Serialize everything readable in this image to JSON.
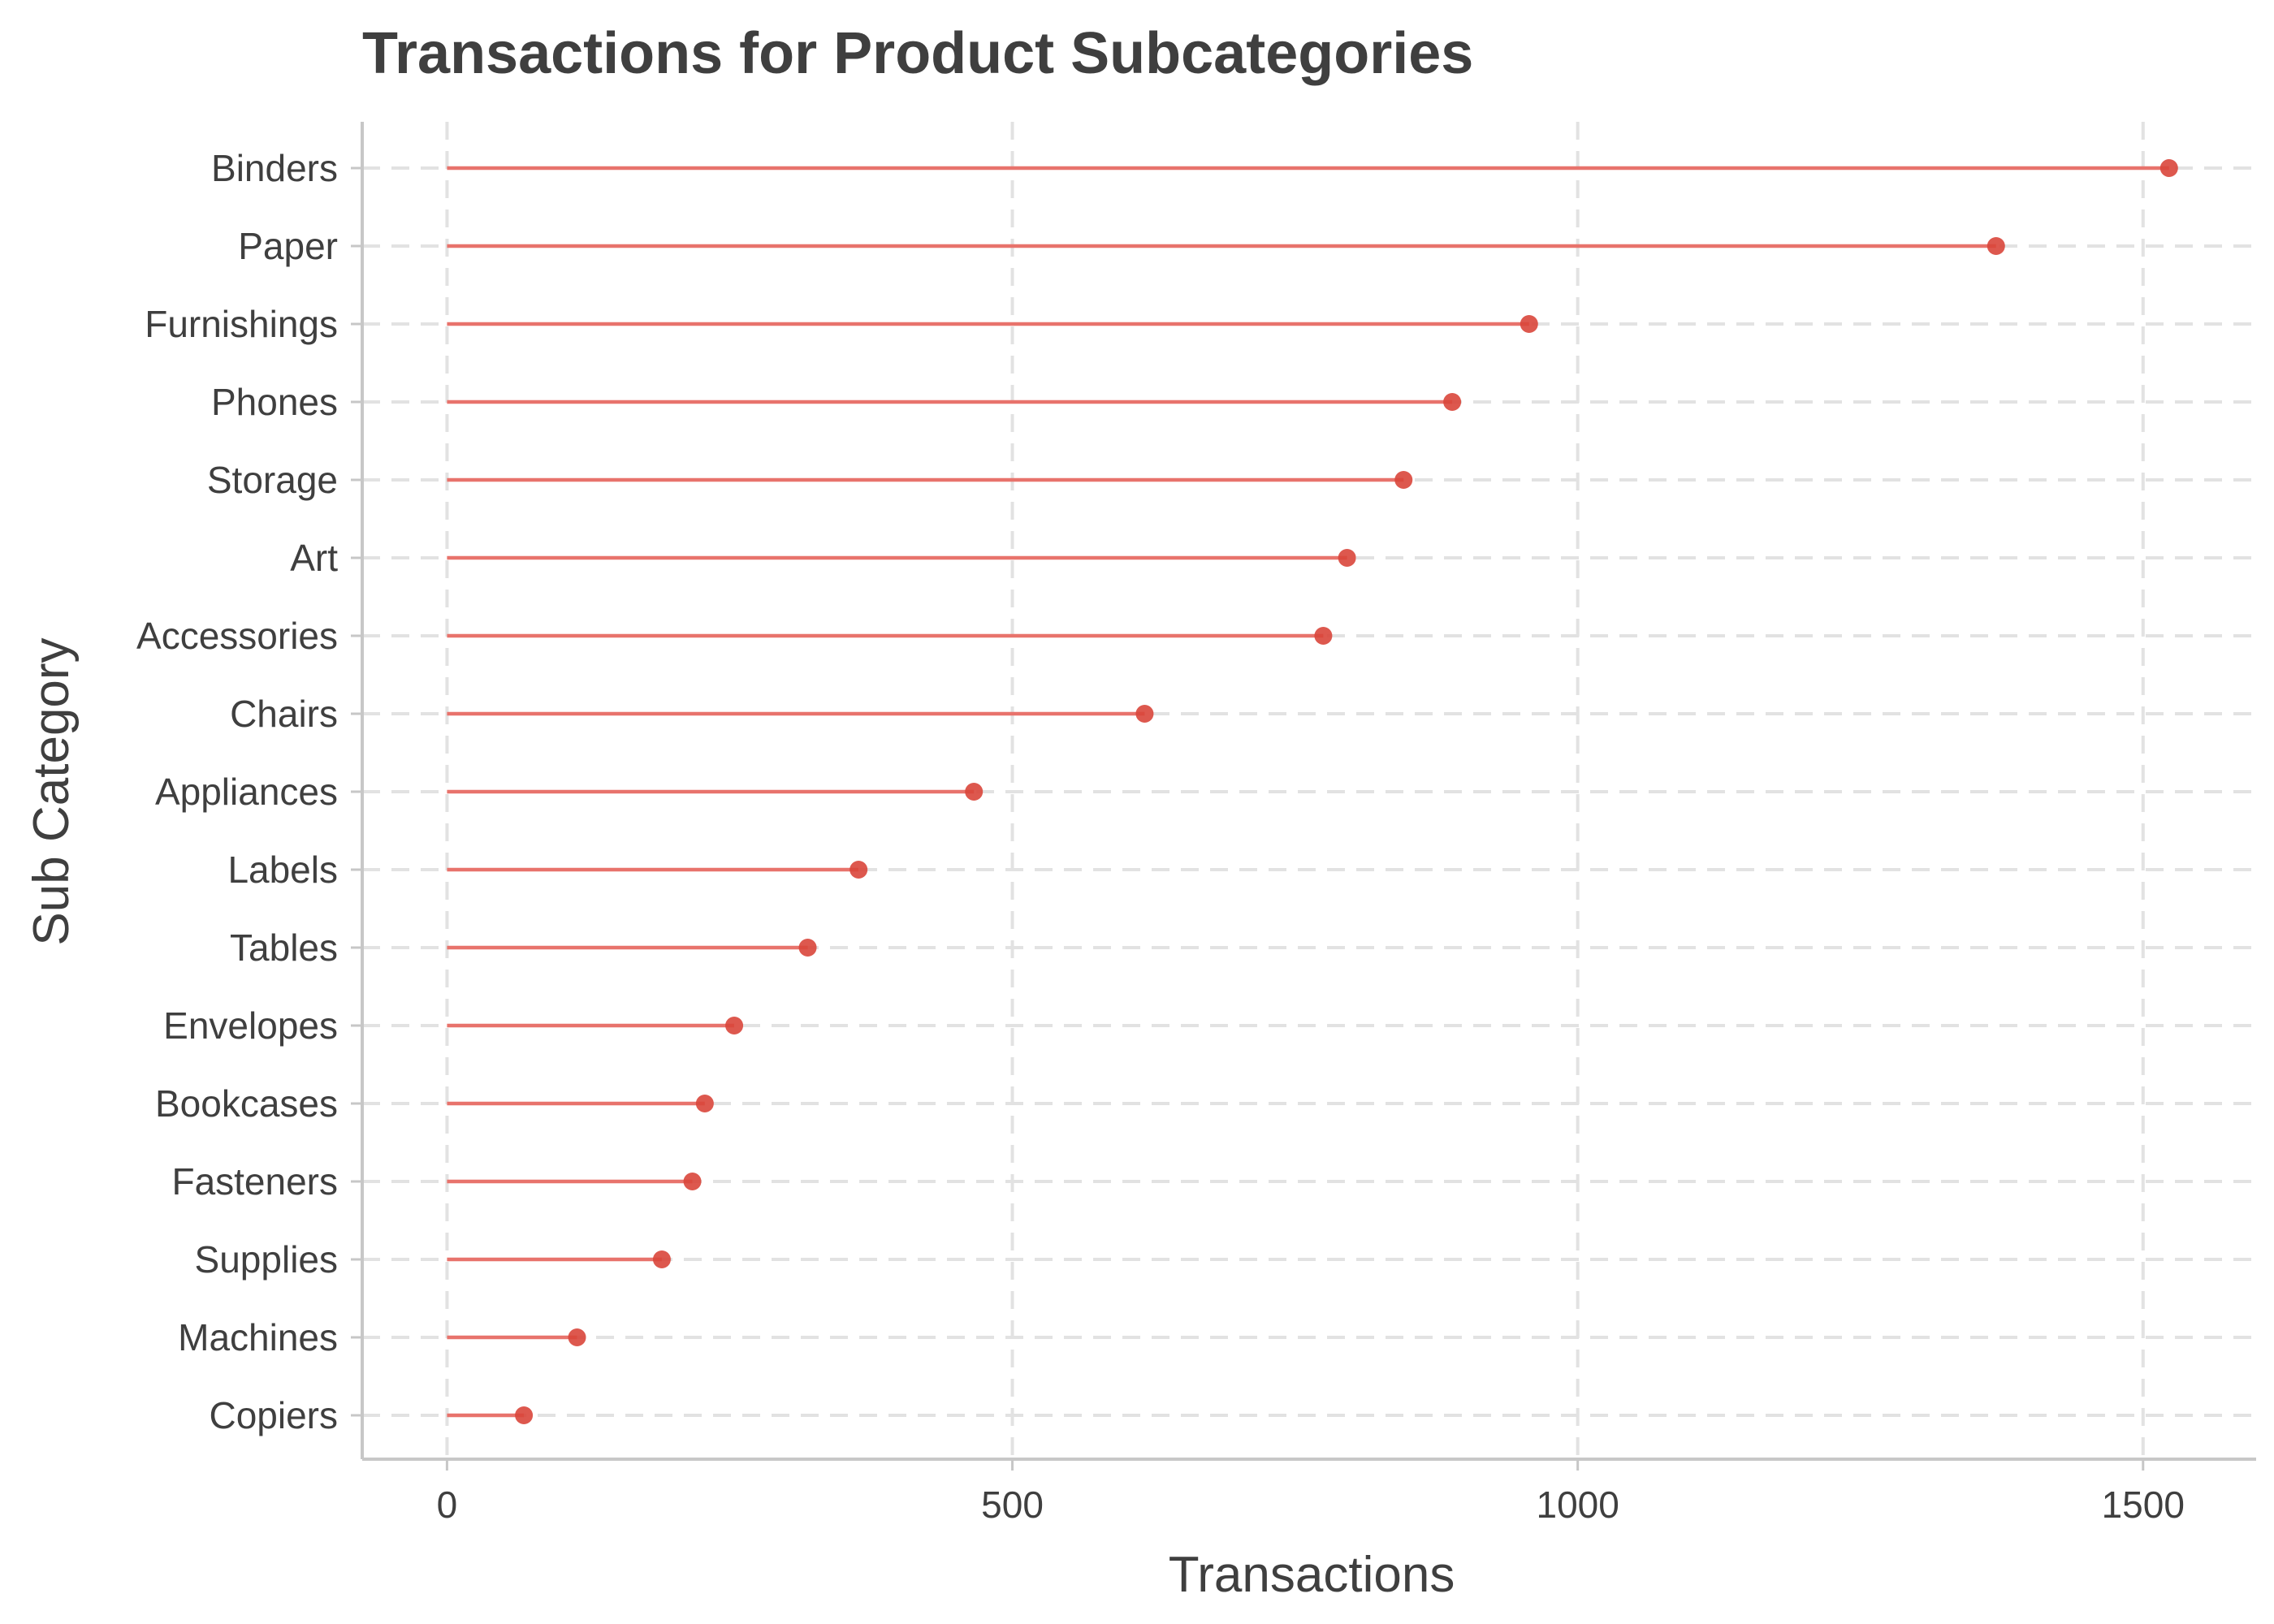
{
  "chart_data": {
    "type": "lollipop",
    "title": "Transactions for Product Subcategories",
    "xlabel": "Transactions",
    "ylabel": "Sub Category",
    "xlim": [
      -75,
      1600
    ],
    "x_ticks": [
      0,
      500,
      1000,
      1500
    ],
    "grid": "dashed major gridlines",
    "legend": "none",
    "colors": {
      "stem": "#e8736c",
      "point": "#d9463b",
      "grid": "#e2e2e2",
      "axis": "#c7c7c7",
      "text": "#3f3f3f"
    },
    "categories": [
      "Binders",
      "Paper",
      "Furnishings",
      "Phones",
      "Storage",
      "Art",
      "Accessories",
      "Chairs",
      "Appliances",
      "Labels",
      "Tables",
      "Envelopes",
      "Bookcases",
      "Fasteners",
      "Supplies",
      "Machines",
      "Copiers"
    ],
    "values": [
      1523,
      1370,
      957,
      889,
      846,
      796,
      775,
      617,
      466,
      364,
      319,
      254,
      228,
      217,
      190,
      115,
      68
    ]
  }
}
